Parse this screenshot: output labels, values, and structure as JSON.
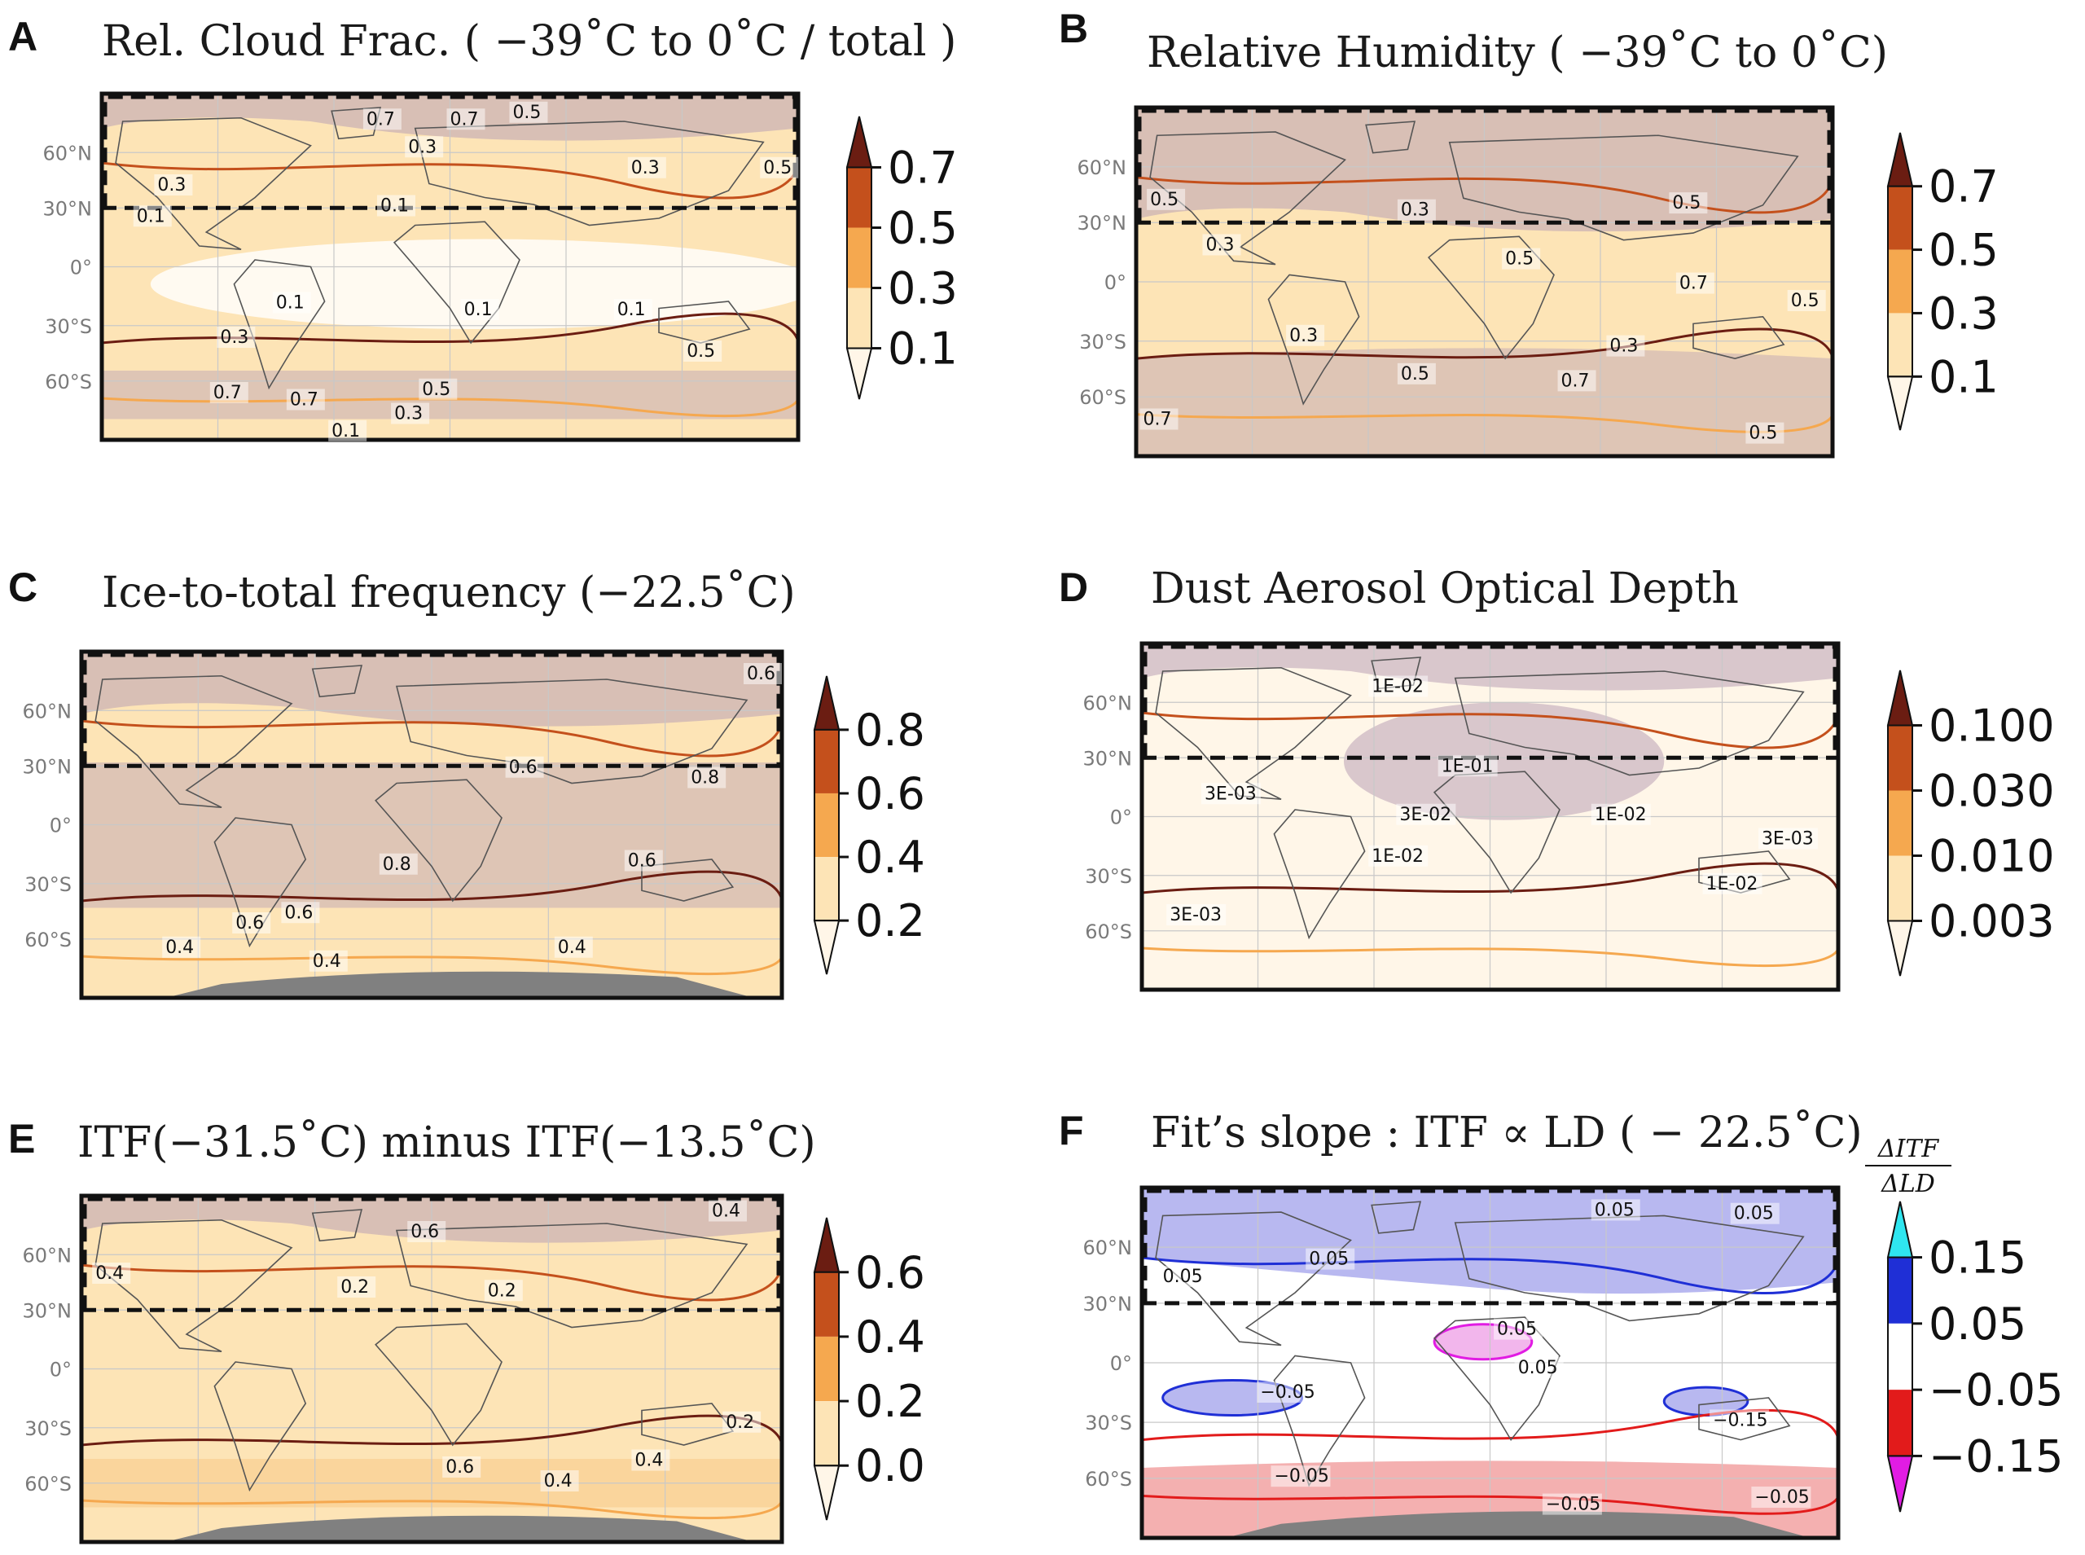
{
  "figure": {
    "latitude_labels": [
      "60°N",
      "30°N",
      "0°",
      "30°S",
      "60°S"
    ],
    "colors": {
      "pale": "#fff6e8",
      "light": "#fde4b6",
      "mid": "#f5a84f",
      "strong": "#c4501c",
      "dark": "#6b1d12",
      "overlay": "#b9a0b4",
      "blue_fill": "#b8b8f0",
      "blue_line": "#1f2fd6",
      "cyan": "#2fe6f0",
      "red_fill": "#f4b0b0",
      "red_line": "#e21b1b",
      "magenta": "#e11ce3",
      "land_grey": "#808080"
    }
  },
  "panels": [
    {
      "letter": "A",
      "title": "Rel. Cloud Frac. ( −39˚C to 0˚C / total )",
      "colorbar": {
        "ticks": [
          "0.7",
          "0.5",
          "0.3",
          "0.1"
        ],
        "palette": "orange"
      },
      "contour_labels": [
        "0.3",
        "0.7",
        "0.7",
        "0.5",
        "0.3",
        "0.3",
        "0.5",
        "0.1",
        "0.1",
        "0.1",
        "0.1",
        "0.1",
        "0.3",
        "0.5",
        "0.7",
        "0.5",
        "0.7",
        "0.3",
        "0.1"
      ],
      "chart_data": {
        "type": "heatmap",
        "map": "global contour map",
        "levels": [
          0.1,
          0.3,
          0.5,
          0.7
        ],
        "extend": "both",
        "region_boxed": "30°N to 90°N"
      }
    },
    {
      "letter": "B",
      "title": "Relative Humidity ( −39˚C to 0˚C)",
      "colorbar": {
        "ticks": [
          "0.7",
          "0.5",
          "0.3",
          "0.1"
        ],
        "palette": "orange"
      },
      "contour_labels": [
        "0.5",
        "0.3",
        "0.5",
        "0.3",
        "0.5",
        "0.7",
        "0.5",
        "0.3",
        "0.3",
        "0.5",
        "0.7",
        "0.7",
        "0.5"
      ],
      "chart_data": {
        "type": "heatmap",
        "map": "global contour map",
        "levels": [
          0.1,
          0.3,
          0.5,
          0.7
        ],
        "extend": "both",
        "region_boxed": "30°N to 90°N"
      }
    },
    {
      "letter": "C",
      "title": "Ice-to-total frequency (−22.5˚C)",
      "colorbar": {
        "ticks": [
          "0.8",
          "0.6",
          "0.4",
          "0.2"
        ],
        "palette": "orange"
      },
      "contour_labels": [
        "0.6",
        "0.6",
        "0.8",
        "0.8",
        "0.6",
        "0.6",
        "0.6",
        "0.4",
        "0.4",
        "0.4"
      ],
      "chart_data": {
        "type": "heatmap",
        "map": "global contour map",
        "levels": [
          0.2,
          0.4,
          0.6,
          0.8
        ],
        "extend": "both",
        "region_boxed": "30°N to 90°N"
      }
    },
    {
      "letter": "D",
      "title": "Dust Aerosol Optical Depth",
      "colorbar": {
        "ticks": [
          "0.100",
          "0.030",
          "0.010",
          "0.003"
        ],
        "palette": "orange"
      },
      "contour_labels": [
        "1E-02",
        "1E-01",
        "3E-03",
        "3E-02",
        "1E-02",
        "3E-03",
        "1E-02",
        "1E-02",
        "3E-03"
      ],
      "chart_data": {
        "type": "heatmap",
        "map": "global contour map",
        "levels": [
          0.003,
          0.01,
          0.03,
          0.1
        ],
        "extend": "both",
        "region_boxed": "30°N to 90°N"
      }
    },
    {
      "letter": "E",
      "title": "ITF(−31.5˚C) minus ITF(−13.5˚C)",
      "colorbar": {
        "ticks": [
          "0.6",
          "0.4",
          "0.2",
          "0.0"
        ],
        "palette": "orange"
      },
      "contour_labels": [
        "0.4",
        "0.6",
        "0.4",
        "0.2",
        "0.2",
        "0.6",
        "0.4",
        "0.4",
        "0.2"
      ],
      "chart_data": {
        "type": "heatmap",
        "map": "global contour map",
        "levels": [
          0.0,
          0.2,
          0.4,
          0.6
        ],
        "extend": "both",
        "region_boxed": "30°N to 90°N"
      }
    },
    {
      "letter": "F",
      "title": "Fit’s slope : ITF ∝ LD ( − 22.5˚C)",
      "colorbar": {
        "ticks": [
          "0.15",
          "0.05",
          "−0.05",
          "−0.15"
        ],
        "palette": "diverging",
        "unit_numerator": "ΔITF",
        "unit_denominator": "ΔLD"
      },
      "contour_labels": [
        "0.05",
        "0.05",
        "0.05",
        "0.05",
        "0.05",
        "0.05",
        "−0.05",
        "−0.15",
        "−0.05",
        "−0.05",
        "−0.05"
      ],
      "chart_data": {
        "type": "heatmap",
        "map": "global contour map",
        "levels": [
          -0.15,
          -0.05,
          0.05,
          0.15
        ],
        "extend": "both",
        "region_boxed": "30°N to 90°N"
      }
    }
  ]
}
